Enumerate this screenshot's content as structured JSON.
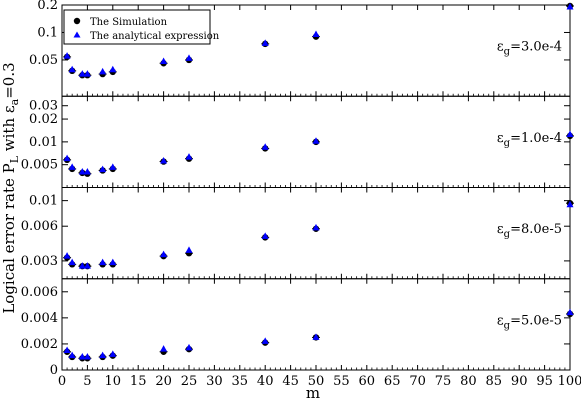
{
  "chart_data": {
    "type": "scatter",
    "xlabel": "m",
    "ylabel": "Logical error rate P",
    "ylabel_sub": "L",
    "ylabel_tail": " with ε",
    "ylabel_tail_sub": "a",
    "ylabel_tail_end": "=0.3",
    "xlim": [
      0,
      100
    ],
    "x_ticks": [
      "0",
      "5",
      "10",
      "15",
      "20",
      "25",
      "30",
      "35",
      "40",
      "45",
      "50",
      "55",
      "60",
      "65",
      "70",
      "75",
      "80",
      "85",
      "90",
      "95",
      "100"
    ],
    "legend": {
      "placement": "top-left",
      "entries": [
        {
          "label": "The Simulation",
          "color": "#000000",
          "marker": "circle"
        },
        {
          "label": "The analytical expression",
          "color": "#0000ff",
          "marker": "triangle"
        }
      ]
    },
    "x": [
      1,
      2,
      4,
      5,
      8,
      10,
      20,
      25,
      40,
      50,
      100
    ],
    "panels": [
      {
        "label_prefix": "ε",
        "label_sub": "g",
        "label_value": "=3.0e-4",
        "log": true,
        "ylim": [
          0.02,
          0.2
        ],
        "y_ticks": [
          {
            "value": 0.05,
            "label": "0.05"
          },
          {
            "value": 0.1,
            "label": "0.1"
          },
          {
            "value": 0.2,
            "label": "0.2"
          }
        ],
        "simulation": [
          0.054,
          0.038,
          0.034,
          0.034,
          0.035,
          0.037,
          0.046,
          0.05,
          0.075,
          0.09,
          0.195
        ],
        "analytical": [
          0.055,
          0.039,
          0.035,
          0.035,
          0.037,
          0.039,
          0.048,
          0.052,
          0.076,
          0.095,
          0.19
        ]
      },
      {
        "label_prefix": "ε",
        "label_sub": "g",
        "label_value": "=1.0e-4",
        "log": true,
        "ylim": [
          0.0025,
          0.04
        ],
        "y_ticks": [
          {
            "value": 0.005,
            "label": "0.005"
          },
          {
            "value": 0.01,
            "label": "0.01"
          },
          {
            "value": 0.02,
            "label": "0.02"
          },
          {
            "value": 0.03,
            "label": "0.03"
          }
        ],
        "simulation": [
          0.0058,
          0.0044,
          0.0039,
          0.0038,
          0.0042,
          0.0044,
          0.0055,
          0.006,
          0.0082,
          0.01,
          0.012
        ],
        "analytical": [
          0.006,
          0.0046,
          0.004,
          0.004,
          0.0043,
          0.0046,
          0.0056,
          0.0063,
          0.0085,
          0.0102,
          0.0125
        ]
      },
      {
        "label_prefix": "ε",
        "label_sub": "g",
        "label_value": "=8.0e-5",
        "log": true,
        "ylim": [
          0.0021,
          0.013
        ],
        "y_ticks": [
          {
            "value": 0.003,
            "label": "0.003"
          },
          {
            "value": 0.006,
            "label": "0.006"
          },
          {
            "value": 0.01,
            "label": "0.01"
          }
        ],
        "simulation": [
          0.0032,
          0.0028,
          0.0027,
          0.0027,
          0.0028,
          0.0028,
          0.0033,
          0.0035,
          0.0048,
          0.0057,
          0.0095
        ],
        "analytical": [
          0.0033,
          0.0029,
          0.0027,
          0.0027,
          0.0029,
          0.0029,
          0.0034,
          0.0037,
          0.0049,
          0.0058,
          0.0092
        ]
      },
      {
        "label_prefix": "ε",
        "label_sub": "g",
        "label_value": "=5.0e-5",
        "log": false,
        "ylim": [
          0,
          0.007
        ],
        "y_ticks": [
          {
            "value": 0,
            "label": "0"
          },
          {
            "value": 0.002,
            "label": "0.002"
          },
          {
            "value": 0.004,
            "label": "0.004"
          },
          {
            "value": 0.006,
            "label": "0.006"
          }
        ],
        "simulation": [
          0.0014,
          0.001,
          0.0009,
          0.0009,
          0.001,
          0.0011,
          0.0014,
          0.0016,
          0.0021,
          0.0025,
          0.0043
        ],
        "analytical": [
          0.0015,
          0.0011,
          0.001,
          0.001,
          0.0011,
          0.0012,
          0.0016,
          0.0017,
          0.0022,
          0.0025,
          0.0044
        ]
      }
    ]
  }
}
